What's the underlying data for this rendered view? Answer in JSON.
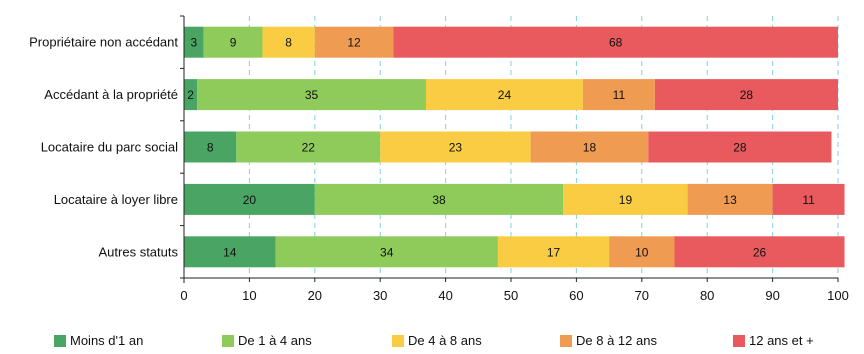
{
  "chart_data": {
    "type": "bar",
    "orientation": "horizontal",
    "stacked": true,
    "categories": [
      "Propriétaire non accédant",
      "Accédant à la propriété",
      "Locataire du parc social",
      "Locataire à loyer libre",
      "Autres statuts"
    ],
    "series": [
      {
        "name": "Moins d'1 an",
        "color": "#4aa564",
        "values": [
          3,
          2,
          8,
          20,
          14
        ]
      },
      {
        "name": "De 1 à 4 ans",
        "color": "#8fcb5a",
        "values": [
          9,
          35,
          22,
          38,
          34
        ]
      },
      {
        "name": "De 4 à 8 ans",
        "color": "#f9cc43",
        "values": [
          8,
          24,
          23,
          19,
          17
        ]
      },
      {
        "name": "De 8 à 12 ans",
        "color": "#f09b52",
        "values": [
          12,
          11,
          18,
          13,
          10
        ]
      },
      {
        "name": "12 ans et +",
        "color": "#e85a5e",
        "values": [
          68,
          28,
          28,
          11,
          26
        ]
      }
    ],
    "xlim": [
      0,
      100
    ],
    "xticks": [
      0,
      10,
      20,
      30,
      40,
      50,
      60,
      70,
      80,
      90,
      100
    ],
    "grid": "vertical dashed",
    "legend": "bottom"
  }
}
